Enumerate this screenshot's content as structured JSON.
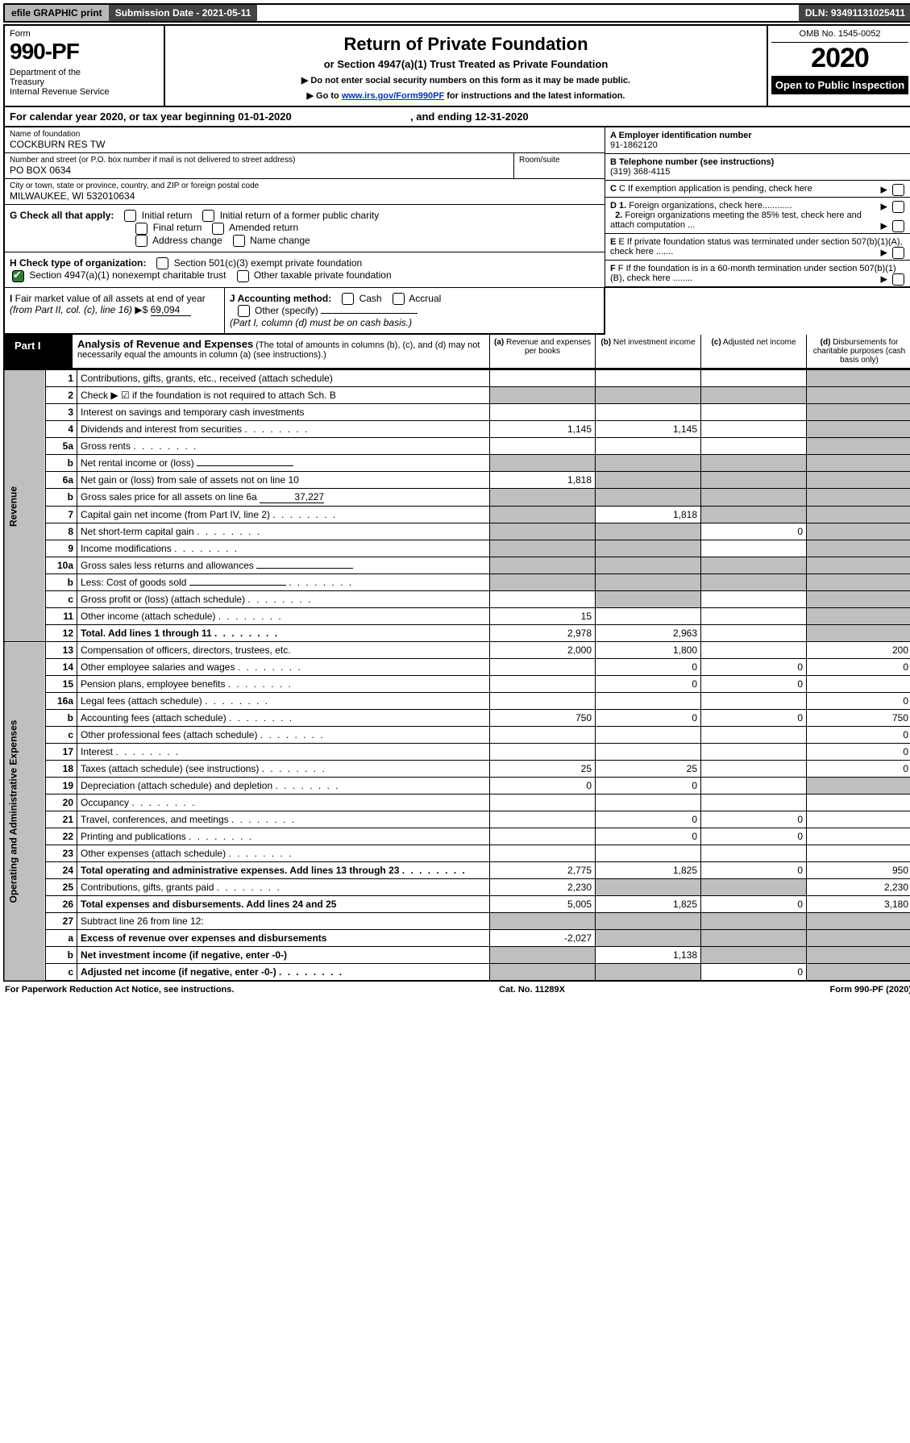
{
  "topbar": {
    "efile": "efile GRAPHIC print",
    "subdate": "Submission Date - 2021-05-11",
    "dln": "DLN: 93491131025411"
  },
  "header": {
    "form_label": "Form",
    "form_num": "990-PF",
    "dept": "Department of the Treasury\nInternal Revenue Service",
    "title": "Return of Private Foundation",
    "subtitle": "or Section 4947(a)(1) Trust Treated as Private Foundation",
    "note1": "▶ Do not enter social security numbers on this form as it may be made public.",
    "note2_pre": "▶ Go to ",
    "note2_link": "www.irs.gov/Form990PF",
    "note2_post": " for instructions and the latest information.",
    "omb": "OMB No. 1545-0052",
    "year": "2020",
    "open": "Open to Public Inspection"
  },
  "calyear": {
    "text_pre": "For calendar year 2020, or tax year beginning ",
    "begin": "01-01-2020",
    "text_mid": " , and ending ",
    "end": "12-31-2020"
  },
  "name": {
    "label": "Name of foundation",
    "val": "COCKBURN RES TW"
  },
  "ein": {
    "label": "A Employer identification number",
    "val": "91-1862120"
  },
  "addr": {
    "label": "Number and street (or P.O. box number if mail is not delivered to street address)",
    "val": "PO BOX 0634",
    "room_label": "Room/suite"
  },
  "phone": {
    "label": "B Telephone number (see instructions)",
    "val": "(319) 368-4115"
  },
  "city": {
    "label": "City or town, state or province, country, and ZIP or foreign postal code",
    "val": "MILWAUKEE, WI  532010634"
  },
  "c_box": "C If exemption application is pending, check here",
  "g_check": {
    "label": "G Check all that apply:",
    "opts": [
      "Initial return",
      "Initial return of a former public charity",
      "Final return",
      "Amended return",
      "Address change",
      "Name change"
    ]
  },
  "d_box": {
    "d1": "D 1. Foreign organizations, check here............",
    "d2": "2. Foreign organizations meeting the 85% test, check here and attach computation ..."
  },
  "h_check": {
    "label": "H Check type of organization:",
    "opt1": "Section 501(c)(3) exempt private foundation",
    "opt2": "Section 4947(a)(1) nonexempt charitable trust",
    "opt3": "Other taxable private foundation"
  },
  "e_box": "E If private foundation status was terminated under section 507(b)(1)(A), check here .......",
  "i_box": {
    "label": "I Fair market value of all assets at end of year (from Part II, col. (c), line 16) ▶$",
    "val": "69,094"
  },
  "j_box": {
    "label": "J Accounting method:",
    "opts": [
      "Cash",
      "Accrual"
    ],
    "other": "Other (specify)",
    "note": "(Part I, column (d) must be on cash basis.)"
  },
  "f_box": "F If the foundation is in a 60-month termination under section 507(b)(1)(B), check here ........",
  "part1": {
    "label": "Part I",
    "title": "Analysis of Revenue and Expenses",
    "desc": "(The total of amounts in columns (b), (c), and (d) may not necessarily equal the amounts in column (a) (see instructions).)",
    "cols": {
      "a": "(a) Revenue and expenses per books",
      "b": "(b) Net investment income",
      "c": "(c) Adjusted net income",
      "d": "(d) Disbursements for charitable purposes (cash basis only)"
    }
  },
  "sections": {
    "revenue": "Revenue",
    "expenses": "Operating and Administrative Expenses"
  },
  "rows": [
    {
      "n": "1",
      "desc": "Contributions, gifts, grants, etc., received (attach schedule)",
      "a": "",
      "b": "",
      "c": "",
      "d": "",
      "d_shade": true
    },
    {
      "n": "2",
      "desc": "Check ▶ ☑ if the foundation is not required to attach Sch. B",
      "a": "",
      "b": "",
      "c": "",
      "d": "",
      "shade_all": true,
      "checked": true
    },
    {
      "n": "3",
      "desc": "Interest on savings and temporary cash investments",
      "a": "",
      "b": "",
      "c": "",
      "d": "",
      "d_shade": true
    },
    {
      "n": "4",
      "desc": "Dividends and interest from securities",
      "a": "1,145",
      "b": "1,145",
      "c": "",
      "d": "",
      "d_shade": true,
      "dots": true
    },
    {
      "n": "5a",
      "desc": "Gross rents",
      "a": "",
      "b": "",
      "c": "",
      "d": "",
      "d_shade": true,
      "dots": true
    },
    {
      "n": "b",
      "desc": "Net rental income or (loss)",
      "a": "",
      "b": "",
      "c": "",
      "d": "",
      "shade_all": true,
      "inline_box": true
    },
    {
      "n": "6a",
      "desc": "Net gain or (loss) from sale of assets not on line 10",
      "a": "1,818",
      "b": "",
      "c": "",
      "d": "",
      "b_shade": true,
      "c_shade": true,
      "d_shade": true
    },
    {
      "n": "b",
      "desc": "Gross sales price for all assets on line 6a",
      "inline_val": "37,227",
      "shade_all": true
    },
    {
      "n": "7",
      "desc": "Capital gain net income (from Part IV, line 2)",
      "a": "",
      "b": "1,818",
      "c": "",
      "d": "",
      "a_shade": true,
      "c_shade": true,
      "d_shade": true,
      "dots": true
    },
    {
      "n": "8",
      "desc": "Net short-term capital gain",
      "a": "",
      "b": "",
      "c": "0",
      "d": "",
      "a_shade": true,
      "b_shade": true,
      "d_shade": true,
      "dots": true
    },
    {
      "n": "9",
      "desc": "Income modifications",
      "a": "",
      "b": "",
      "c": "",
      "d": "",
      "a_shade": true,
      "b_shade": true,
      "d_shade": true,
      "dots": true
    },
    {
      "n": "10a",
      "desc": "Gross sales less returns and allowances",
      "shade_all": true,
      "inline_box": true
    },
    {
      "n": "b",
      "desc": "Less: Cost of goods sold",
      "shade_all": true,
      "inline_box": true,
      "dots": true
    },
    {
      "n": "c",
      "desc": "Gross profit or (loss) (attach schedule)",
      "a": "",
      "b": "",
      "c": "",
      "d": "",
      "b_shade": true,
      "d_shade": true,
      "dots": true
    },
    {
      "n": "11",
      "desc": "Other income (attach schedule)",
      "a": "15",
      "b": "",
      "c": "",
      "d": "",
      "d_shade": true,
      "dots": true
    },
    {
      "n": "12",
      "desc": "Total. Add lines 1 through 11",
      "a": "2,978",
      "b": "2,963",
      "c": "",
      "d": "",
      "d_shade": true,
      "dots": true,
      "bold": true
    }
  ],
  "exp_rows": [
    {
      "n": "13",
      "desc": "Compensation of officers, directors, trustees, etc.",
      "a": "2,000",
      "b": "1,800",
      "c": "",
      "d": "200"
    },
    {
      "n": "14",
      "desc": "Other employee salaries and wages",
      "a": "",
      "b": "0",
      "c": "0",
      "d": "0",
      "dots": true
    },
    {
      "n": "15",
      "desc": "Pension plans, employee benefits",
      "a": "",
      "b": "0",
      "c": "0",
      "d": "",
      "dots": true
    },
    {
      "n": "16a",
      "desc": "Legal fees (attach schedule)",
      "a": "",
      "b": "",
      "c": "",
      "d": "0",
      "dots": true
    },
    {
      "n": "b",
      "desc": "Accounting fees (attach schedule)",
      "a": "750",
      "b": "0",
      "c": "0",
      "d": "750",
      "dots": true
    },
    {
      "n": "c",
      "desc": "Other professional fees (attach schedule)",
      "a": "",
      "b": "",
      "c": "",
      "d": "0",
      "dots": true
    },
    {
      "n": "17",
      "desc": "Interest",
      "a": "",
      "b": "",
      "c": "",
      "d": "0",
      "dots": true
    },
    {
      "n": "18",
      "desc": "Taxes (attach schedule) (see instructions)",
      "a": "25",
      "b": "25",
      "c": "",
      "d": "0",
      "dots": true
    },
    {
      "n": "19",
      "desc": "Depreciation (attach schedule) and depletion",
      "a": "0",
      "b": "0",
      "c": "",
      "d": "",
      "d_shade": true,
      "dots": true
    },
    {
      "n": "20",
      "desc": "Occupancy",
      "a": "",
      "b": "",
      "c": "",
      "d": "",
      "dots": true
    },
    {
      "n": "21",
      "desc": "Travel, conferences, and meetings",
      "a": "",
      "b": "0",
      "c": "0",
      "d": "",
      "dots": true
    },
    {
      "n": "22",
      "desc": "Printing and publications",
      "a": "",
      "b": "0",
      "c": "0",
      "d": "",
      "dots": true
    },
    {
      "n": "23",
      "desc": "Other expenses (attach schedule)",
      "a": "",
      "b": "",
      "c": "",
      "d": "",
      "dots": true
    },
    {
      "n": "24",
      "desc": "Total operating and administrative expenses. Add lines 13 through 23",
      "a": "2,775",
      "b": "1,825",
      "c": "0",
      "d": "950",
      "dots": true,
      "bold": true
    },
    {
      "n": "25",
      "desc": "Contributions, gifts, grants paid",
      "a": "2,230",
      "b": "",
      "c": "",
      "d": "2,230",
      "b_shade": true,
      "c_shade": true,
      "dots": true
    },
    {
      "n": "26",
      "desc": "Total expenses and disbursements. Add lines 24 and 25",
      "a": "5,005",
      "b": "1,825",
      "c": "0",
      "d": "3,180",
      "bold": true
    },
    {
      "n": "27",
      "desc": "Subtract line 26 from line 12:",
      "shade_all": true
    },
    {
      "n": "a",
      "desc": "Excess of revenue over expenses and disbursements",
      "a": "-2,027",
      "b": "",
      "c": "",
      "d": "",
      "b_shade": true,
      "c_shade": true,
      "d_shade": true,
      "bold": true
    },
    {
      "n": "b",
      "desc": "Net investment income (if negative, enter -0-)",
      "a": "",
      "b": "1,138",
      "c": "",
      "d": "",
      "a_shade": true,
      "c_shade": true,
      "d_shade": true,
      "bold": true
    },
    {
      "n": "c",
      "desc": "Adjusted net income (if negative, enter -0-)",
      "a": "",
      "b": "",
      "c": "0",
      "d": "",
      "a_shade": true,
      "b_shade": true,
      "d_shade": true,
      "bold": true,
      "dots": true
    }
  ],
  "footer": {
    "left": "For Paperwork Reduction Act Notice, see instructions.",
    "mid": "Cat. No. 11289X",
    "right": "Form 990-PF (2020)"
  }
}
